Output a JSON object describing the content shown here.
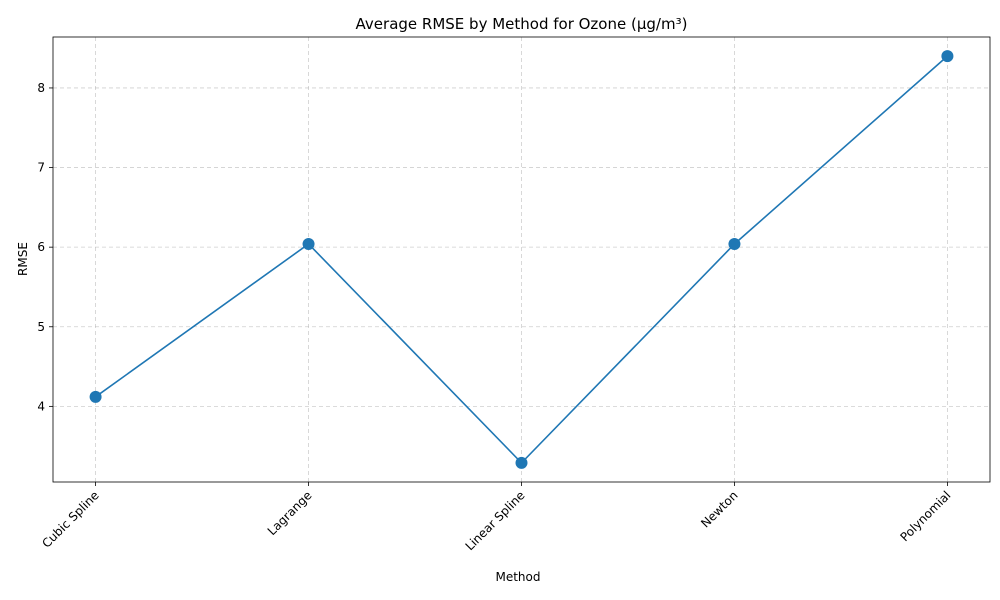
{
  "chart_data": {
    "type": "line",
    "title": "Average RMSE by Method for Ozone (µg/m³)",
    "xlabel": "Method",
    "ylabel": "RMSE",
    "categories": [
      "Cubic Spline",
      "Lagrange",
      "Linear Spline",
      "Newton",
      "Polynomial"
    ],
    "series": [
      {
        "values": [
          4.12,
          6.04,
          3.29,
          6.04,
          8.4
        ],
        "color": "#1f77b4"
      }
    ],
    "ylim": [
      3.05,
      8.64
    ],
    "yticks": [
      4,
      5,
      6,
      7,
      8
    ],
    "grid": true,
    "legend": "none"
  }
}
